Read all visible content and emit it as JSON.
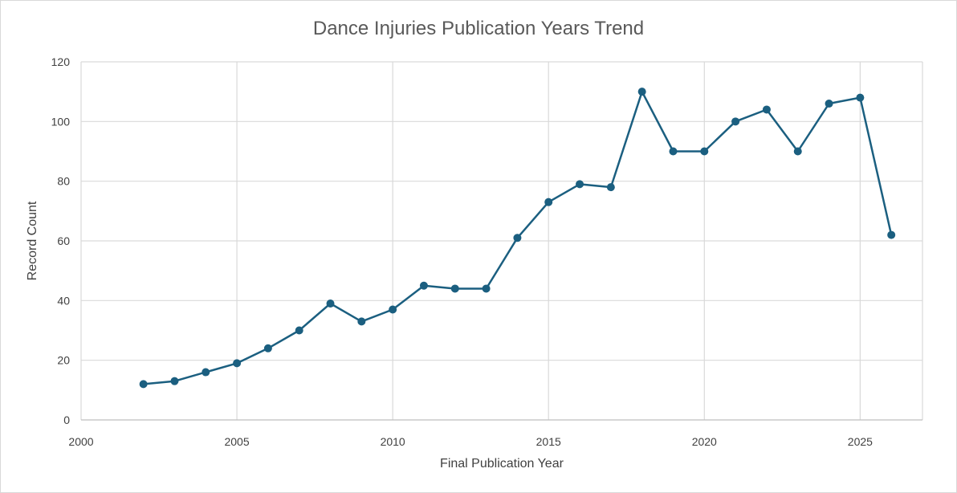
{
  "chart_data": {
    "type": "line",
    "title": "Dance Injuries Publication Years Trend",
    "xlabel": "Final Publication Year",
    "ylabel": "Record Count",
    "xlim": [
      2000,
      2027
    ],
    "ylim": [
      0,
      120
    ],
    "x_ticks": [
      2000,
      2005,
      2010,
      2015,
      2020,
      2025
    ],
    "y_ticks": [
      0,
      20,
      40,
      60,
      80,
      100,
      120
    ],
    "grid": true,
    "legend": "none",
    "series": [
      {
        "color": "#1b5f80",
        "x": [
          2002,
          2003,
          2004,
          2005,
          2006,
          2007,
          2008,
          2009,
          2010,
          2011,
          2012,
          2013,
          2014,
          2015,
          2016,
          2017,
          2018,
          2019,
          2020,
          2021,
          2022,
          2023,
          2024,
          2025,
          2026
        ],
        "y": [
          12,
          13,
          16,
          19,
          24,
          30,
          39,
          33,
          37,
          45,
          44,
          44,
          61,
          73,
          79,
          78,
          110,
          90,
          90,
          100,
          104,
          90,
          106,
          108,
          62
        ]
      }
    ]
  }
}
